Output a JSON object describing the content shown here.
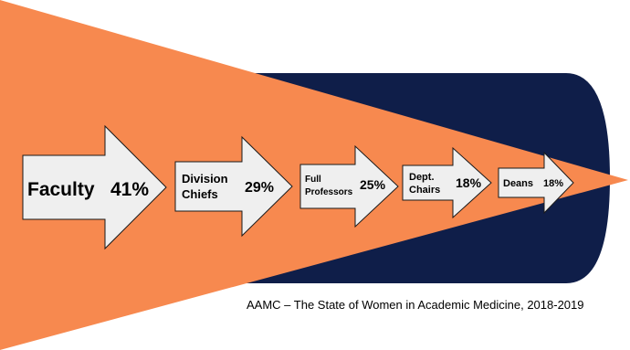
{
  "colors": {
    "funnel_fill": "#f7894f",
    "cylinder_fill": "#0f1e49",
    "arrow_fill": "#efefef",
    "arrow_stroke": "#1a1a1a"
  },
  "stages": [
    {
      "label_lines": [
        "Faculty"
      ],
      "value": "41%"
    },
    {
      "label_lines": [
        "Division",
        "Chiefs"
      ],
      "value": "29%"
    },
    {
      "label_lines": [
        "Full",
        "Professors"
      ],
      "value": "25%"
    },
    {
      "label_lines": [
        "Dept.",
        "Chairs"
      ],
      "value": "18%"
    },
    {
      "label_lines": [
        "Deans"
      ],
      "value": "18%"
    }
  ],
  "source_text": "AAMC – The State of Women in Academic Medicine, 2018-2019"
}
